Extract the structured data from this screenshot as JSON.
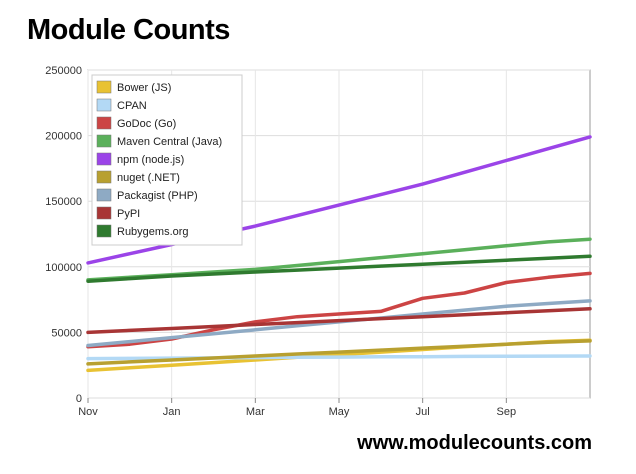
{
  "title": "Module Counts",
  "footer": "www.modulecounts.com",
  "chart_data": {
    "type": "line",
    "title": "Module Counts",
    "xlabel": "",
    "ylabel": "",
    "x": [
      0,
      1,
      2,
      3,
      4,
      5,
      6,
      7,
      8,
      9,
      10,
      11,
      12
    ],
    "x_tick_labels": [
      "Nov",
      "Jan",
      "Mar",
      "May",
      "Jul",
      "Sep"
    ],
    "x_tick_positions": [
      0,
      2,
      4,
      6,
      8,
      10
    ],
    "ylim": [
      0,
      250000
    ],
    "xlim": [
      0,
      12
    ],
    "y_ticks": [
      0,
      50000,
      100000,
      150000,
      200000,
      250000
    ],
    "grid": true,
    "legend_position": "top-left",
    "series": [
      {
        "name": "Bower (JS)",
        "color": "#e8c233",
        "values": [
          21000,
          23000,
          25000,
          27000,
          29000,
          31000,
          33000,
          35000,
          37000,
          39000,
          41000,
          43000,
          44000
        ]
      },
      {
        "name": "CPAN",
        "color": "#b3d9f5",
        "values": [
          30000,
          30200,
          30400,
          30600,
          30800,
          31000,
          31200,
          31400,
          31500,
          31700,
          31800,
          31900,
          32000
        ]
      },
      {
        "name": "GoDoc (Go)",
        "color": "#cc4444",
        "values": [
          39000,
          41000,
          45000,
          52000,
          58000,
          62000,
          64000,
          66000,
          76000,
          80000,
          88000,
          92000,
          95000
        ]
      },
      {
        "name": "Maven Central (Java)",
        "color": "#5bb05b",
        "values": [
          90000,
          92000,
          94000,
          96000,
          98000,
          101000,
          104000,
          107000,
          110000,
          113000,
          116000,
          119000,
          121000
        ]
      },
      {
        "name": "npm (node.js)",
        "color": "#9b44e8",
        "values": [
          103000,
          110000,
          117000,
          124000,
          131000,
          139000,
          147000,
          155000,
          163000,
          172000,
          181000,
          190000,
          199000
        ]
      },
      {
        "name": "nuget (.NET)",
        "color": "#b8a030",
        "values": [
          26000,
          27500,
          29000,
          30500,
          32000,
          33500,
          35000,
          36500,
          38000,
          39500,
          41000,
          42500,
          43500
        ]
      },
      {
        "name": "Packagist (PHP)",
        "color": "#8eaac4",
        "values": [
          40000,
          43000,
          46000,
          49000,
          52000,
          55000,
          58000,
          61000,
          64000,
          67000,
          70000,
          72000,
          74000
        ]
      },
      {
        "name": "PyPI",
        "color": "#a83535",
        "values": [
          50000,
          51500,
          53000,
          54500,
          56000,
          57500,
          59000,
          60500,
          62000,
          63500,
          65000,
          66500,
          68000
        ]
      },
      {
        "name": "Rubygems.org",
        "color": "#2f7a2f",
        "values": [
          89000,
          91000,
          93000,
          94500,
          96000,
          97500,
          99000,
          100500,
          102000,
          103500,
          105000,
          106500,
          108000
        ]
      }
    ]
  }
}
